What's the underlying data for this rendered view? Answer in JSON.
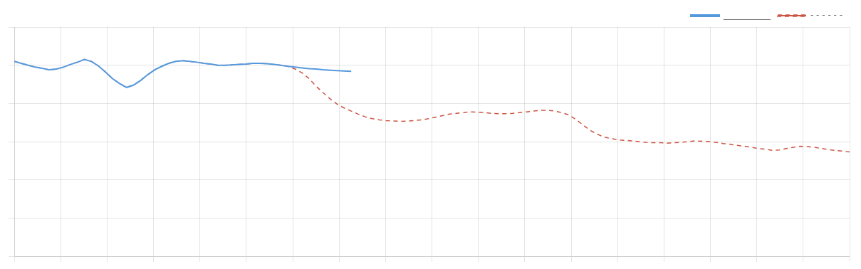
{
  "chart_data": {
    "type": "line",
    "series": [
      {
        "name": "___________",
        "color": "#5599dd",
        "line_style": "solid",
        "x": [
          0,
          1,
          2,
          3,
          4,
          5,
          6,
          7,
          8,
          9,
          10,
          11,
          12,
          13,
          14,
          15,
          16,
          17,
          18,
          19,
          20,
          21,
          22,
          23,
          24,
          25,
          26,
          27,
          28,
          29,
          30,
          31,
          32,
          33,
          34,
          35,
          36,
          37,
          38,
          39,
          40,
          41,
          42,
          43,
          44,
          45,
          46,
          47,
          48
        ],
        "values": [
          5.1,
          5.05,
          5.0,
          4.95,
          4.92,
          4.88,
          4.9,
          4.95,
          5.02,
          5.08,
          5.15,
          5.1,
          4.98,
          4.82,
          4.65,
          4.52,
          4.42,
          4.48,
          4.6,
          4.75,
          4.88,
          4.97,
          5.05,
          5.1,
          5.12,
          5.1,
          5.08,
          5.05,
          5.03,
          5.0,
          5.0,
          5.01,
          5.02,
          5.03,
          5.05,
          5.05,
          5.04,
          5.02,
          5.0,
          4.97,
          4.95,
          4.93,
          4.91,
          4.9,
          4.88,
          4.87,
          4.86,
          4.85,
          4.84
        ]
      },
      {
        "name": "- - - - - -",
        "color": "#cc5544",
        "line_style": "dashed",
        "x": [
          0,
          1,
          2,
          3,
          4,
          5,
          6,
          7,
          8,
          9,
          10,
          11,
          12,
          13,
          14,
          15,
          16,
          17,
          18,
          19,
          20,
          21,
          22,
          23,
          24,
          25,
          26,
          27,
          28,
          29,
          30,
          31,
          32,
          33,
          34,
          35,
          36,
          37,
          38,
          39,
          40,
          41,
          42,
          43,
          44,
          45,
          46,
          47,
          48,
          49,
          50,
          51,
          52,
          53,
          54,
          55,
          56,
          57,
          58,
          59,
          60,
          61,
          62,
          63,
          64,
          65,
          66,
          67,
          68,
          69,
          70,
          71,
          72,
          73,
          74,
          75,
          76,
          77,
          78,
          79,
          80,
          81,
          82,
          83,
          84,
          85,
          86,
          87,
          88,
          89,
          90,
          91,
          92,
          93,
          94,
          95,
          96,
          97,
          98,
          99,
          100,
          101,
          102,
          103,
          104,
          105,
          106,
          107,
          108,
          109,
          110,
          111,
          112,
          113,
          114,
          115,
          116,
          117,
          118,
          119
        ],
        "values": [
          5.1,
          5.05,
          5.0,
          4.95,
          4.92,
          4.88,
          4.9,
          4.95,
          5.02,
          5.08,
          5.15,
          5.1,
          4.98,
          4.82,
          4.65,
          4.52,
          4.42,
          4.48,
          4.6,
          4.75,
          4.88,
          4.97,
          5.05,
          5.1,
          5.12,
          5.1,
          5.08,
          5.05,
          5.03,
          5.0,
          5.0,
          5.01,
          5.02,
          5.03,
          5.05,
          5.05,
          5.04,
          5.02,
          5.0,
          4.97,
          4.9,
          4.8,
          4.65,
          4.45,
          4.28,
          4.12,
          3.98,
          3.88,
          3.8,
          3.72,
          3.65,
          3.6,
          3.57,
          3.55,
          3.54,
          3.53,
          3.54,
          3.55,
          3.57,
          3.6,
          3.64,
          3.68,
          3.72,
          3.74,
          3.76,
          3.78,
          3.77,
          3.76,
          3.74,
          3.73,
          3.73,
          3.74,
          3.76,
          3.78,
          3.8,
          3.82,
          3.82,
          3.8,
          3.76,
          3.7,
          3.58,
          3.44,
          3.3,
          3.2,
          3.12,
          3.08,
          3.05,
          3.03,
          3.02,
          3.0,
          2.98,
          2.97,
          2.97,
          2.96,
          2.97,
          2.98,
          3.0,
          3.02,
          3.01,
          3.0,
          2.98,
          2.95,
          2.93,
          2.9,
          2.88,
          2.85,
          2.82,
          2.8,
          2.77,
          2.78,
          2.82,
          2.85,
          2.88,
          2.87,
          2.85,
          2.82,
          2.79,
          2.77,
          2.75,
          2.73
        ]
      }
    ],
    "xlim": [
      0,
      119
    ],
    "xticks": [
      0,
      6.611111111111111,
      13.222222222222221,
      19.833333333333332,
      26.444444444444443,
      33.05555555555556,
      39.666666666666664,
      46.27777777777778,
      52.888888888888886,
      59.5,
      66.11111111111111,
      72.72222222222223,
      79.33333333333333,
      85.94444444444444,
      92.55555555555556,
      99.16666666666667,
      105.77777777777777,
      112.38888888888889,
      119
    ],
    "ylim": [
      0,
      6
    ],
    "yticks": [
      0,
      1,
      2,
      3,
      4,
      5,
      6
    ],
    "grid": true,
    "tick_labels": false,
    "legend": "upper right"
  }
}
